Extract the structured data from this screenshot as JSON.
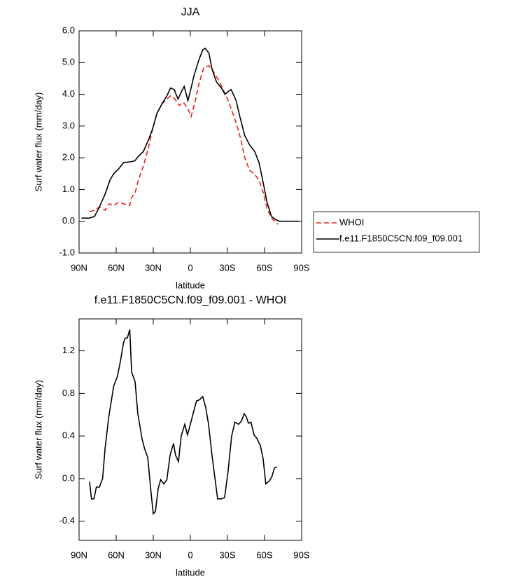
{
  "chart_data": [
    {
      "type": "line",
      "title": "JJA",
      "xlabel": "latitude",
      "ylabel": "Surf water flux (mm/day)",
      "xlim": [
        90,
        -90
      ],
      "ylim": [
        -1,
        6
      ],
      "xticks": [
        {
          "value": 90,
          "label": "90N"
        },
        {
          "value": 60,
          "label": "60N"
        },
        {
          "value": 30,
          "label": "30N"
        },
        0,
        {
          "value": -30,
          "label": "30S"
        },
        {
          "value": -60,
          "label": "60S"
        },
        {
          "value": -90,
          "label": "90S"
        }
      ],
      "yticks": [
        {
          "value": -1,
          "label": "-1.0"
        },
        {
          "value": 0,
          "label": "0.0"
        },
        {
          "value": 1,
          "label": "1.0"
        },
        {
          "value": 2,
          "label": "2.0"
        },
        {
          "value": 3,
          "label": "3.0"
        },
        {
          "value": 4,
          "label": "4.0"
        },
        {
          "value": 5,
          "label": "5.0"
        },
        {
          "value": 6,
          "label": "6.0"
        }
      ],
      "legend": "outside-right",
      "series": [
        {
          "name": "WHOI",
          "color": "#e8221e",
          "dashed": true,
          "x": [
            81.5,
            77.5,
            73.6,
            69,
            65.7,
            62,
            58,
            54,
            49,
            47.5,
            44.7,
            42,
            38,
            34,
            30.6,
            27,
            23,
            19,
            16,
            12.5,
            9,
            5.7,
            2,
            -0.6,
            -4,
            -7,
            -11,
            -15,
            -18,
            -22,
            -26,
            -30,
            -33,
            -37,
            -40.7,
            -44,
            -48,
            -51.5,
            -55.5,
            -59,
            -62,
            -65.6,
            -69.6,
            -71
          ],
          "values": [
            0.3,
            0.35,
            0.45,
            0.35,
            0.55,
            0.5,
            0.6,
            0.55,
            0.5,
            0.75,
            0.9,
            1.3,
            1.75,
            2.3,
            2.9,
            3.4,
            3.7,
            3.85,
            3.95,
            3.85,
            3.65,
            3.75,
            3.55,
            3.3,
            3.8,
            4.35,
            4.85,
            4.9,
            4.75,
            4.5,
            4.2,
            3.85,
            3.55,
            3.1,
            2.6,
            2.0,
            1.6,
            1.5,
            1.3,
            0.9,
            0.4,
            0.1,
            -0.05,
            -0.1
          ]
        },
        {
          "name": "f.e11.F1850C5CN.f09_f09.001",
          "color": "#000000",
          "dashed": false,
          "x": [
            88,
            82,
            77.5,
            73.6,
            69,
            65,
            62,
            58,
            54,
            49,
            45,
            42,
            38,
            34,
            30.6,
            27,
            23,
            19,
            16,
            13,
            10,
            7,
            5,
            2,
            0,
            -3,
            -7,
            -10,
            -12,
            -15,
            -17.5,
            -21,
            -25,
            -28,
            -31,
            -33,
            -37,
            -40,
            -44,
            -48,
            -52,
            -55.5,
            -59,
            -62,
            -65.6,
            -69,
            -72,
            -78,
            -88
          ],
          "values": [
            0.1,
            0.1,
            0.15,
            0.45,
            0.85,
            1.3,
            1.5,
            1.65,
            1.85,
            1.87,
            1.9,
            2.05,
            2.2,
            2.55,
            2.9,
            3.4,
            3.7,
            3.95,
            4.2,
            4.15,
            3.85,
            4.1,
            4.25,
            3.8,
            4.1,
            4.6,
            5.1,
            5.4,
            5.45,
            5.3,
            4.8,
            4.4,
            4.2,
            4.0,
            4.1,
            4.15,
            3.8,
            3.3,
            2.7,
            2.4,
            2.2,
            1.85,
            1.2,
            0.6,
            0.15,
            0.05,
            0.0,
            0.0,
            0.0
          ]
        }
      ]
    },
    {
      "type": "line",
      "title": "f.e11.F1850C5CN.f09_f09.001 - WHOI",
      "xlabel": "latitude",
      "ylabel": "Surf water flux (mm/day)",
      "xlim": [
        90,
        -90
      ],
      "ylim": [
        -0.58,
        1.5
      ],
      "xticks": [
        {
          "value": 90,
          "label": "90N"
        },
        {
          "value": 60,
          "label": "60N"
        },
        {
          "value": 30,
          "label": "30N"
        },
        0,
        {
          "value": -30,
          "label": "30S"
        },
        {
          "value": -60,
          "label": "60S"
        },
        {
          "value": -90,
          "label": "90S"
        }
      ],
      "yticks": [
        -0.4,
        {
          "value": 0,
          "label": "0.0"
        },
        0.4,
        0.8,
        1.2
      ],
      "series": [
        {
          "color": "#000000",
          "dashed": false,
          "x": [
            81.5,
            80,
            78,
            76,
            73.6,
            71,
            69,
            66,
            62,
            59,
            56.6,
            54,
            52.6,
            51,
            49,
            47.5,
            44.7,
            42.5,
            39,
            37,
            34.5,
            32,
            30,
            28.3,
            26,
            24,
            21.5,
            19,
            16.4,
            13.6,
            12,
            9.6,
            7.4,
            4.5,
            2.3,
            0,
            -2.2,
            -5,
            -7.3,
            -10,
            -12.4,
            -14.7,
            -17.5,
            -19.7,
            -22,
            -25,
            -27.7,
            -30.5,
            -33.4,
            -36,
            -39,
            -41.3,
            -43.6,
            -45.3,
            -47,
            -49,
            -51.5,
            -53.7,
            -56.6,
            -58.8,
            -61,
            -64,
            -66,
            -68,
            -70
          ],
          "values": [
            -0.03,
            -0.19,
            -0.19,
            -0.08,
            -0.08,
            0.0,
            0.28,
            0.58,
            0.87,
            0.96,
            1.1,
            1.28,
            1.32,
            1.32,
            1.4,
            1.0,
            0.91,
            0.61,
            0.37,
            0.28,
            0.2,
            -0.11,
            -0.33,
            -0.31,
            -0.09,
            -0.01,
            -0.05,
            -0.01,
            0.22,
            0.33,
            0.22,
            0.16,
            0.4,
            0.51,
            0.41,
            0.51,
            0.61,
            0.73,
            0.74,
            0.77,
            0.67,
            0.51,
            0.22,
            0.02,
            -0.19,
            -0.19,
            -0.18,
            0.07,
            0.4,
            0.53,
            0.51,
            0.54,
            0.61,
            0.58,
            0.52,
            0.53,
            0.41,
            0.38,
            0.31,
            0.19,
            -0.05,
            -0.02,
            0.02,
            0.1,
            0.11
          ]
        }
      ]
    }
  ]
}
